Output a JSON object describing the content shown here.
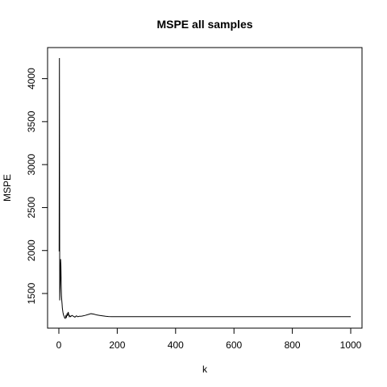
{
  "chart_data": {
    "type": "line",
    "title": "MSPE all samples",
    "xlabel": "k",
    "ylabel": "MSPE",
    "xlim": [
      0,
      1000
    ],
    "ylim": [
      1200,
      4240
    ],
    "xticks": [
      0,
      200,
      400,
      600,
      800,
      1000
    ],
    "yticks": [
      1500,
      2000,
      2500,
      3000,
      3500,
      4000
    ],
    "grid": false,
    "legend": "none",
    "line_color": "#000000",
    "series": [
      {
        "x": [
          1,
          2,
          3,
          4,
          5,
          6,
          7,
          8,
          9,
          10,
          11,
          12,
          14,
          16,
          18,
          20,
          22,
          24,
          26,
          28,
          30,
          32,
          34,
          36,
          38,
          40,
          45,
          50,
          55,
          60,
          65,
          70,
          75,
          80,
          90,
          100,
          110,
          120,
          130,
          140,
          150,
          160,
          170,
          180,
          200,
          250,
          300,
          400,
          500,
          600,
          700,
          800,
          900,
          1000
        ],
        "y": [
          1990,
          4240,
          1420,
          1550,
          1700,
          1900,
          1830,
          1600,
          1470,
          1420,
          1380,
          1330,
          1280,
          1250,
          1235,
          1215,
          1210,
          1240,
          1225,
          1260,
          1240,
          1285,
          1255,
          1230,
          1240,
          1230,
          1245,
          1235,
          1225,
          1240,
          1230,
          1235,
          1235,
          1238,
          1245,
          1255,
          1265,
          1260,
          1250,
          1245,
          1240,
          1235,
          1232,
          1230,
          1230,
          1230,
          1230,
          1230,
          1230,
          1230,
          1230,
          1230,
          1230,
          1230
        ]
      }
    ]
  }
}
